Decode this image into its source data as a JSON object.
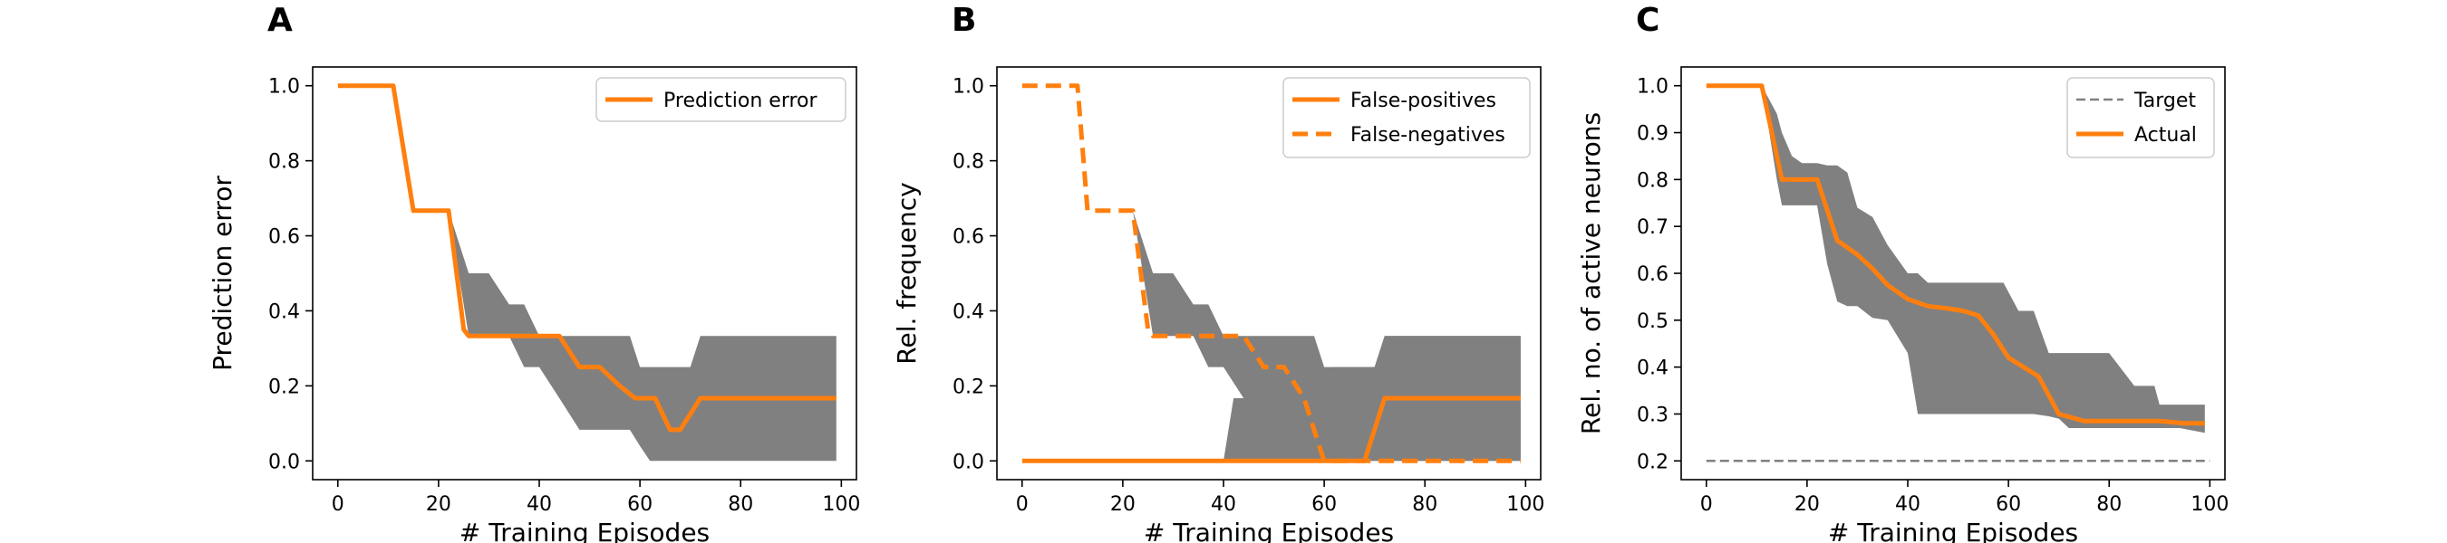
{
  "colors": {
    "primary": "#ff7f0e",
    "band": "#808080",
    "target": "#808080"
  },
  "chart_data": [
    {
      "type": "line",
      "panel_label": "A",
      "xlabel": "# Training Episodes",
      "ylabel": "Prediction error",
      "xlim": [
        -5,
        103
      ],
      "ylim": [
        -0.05,
        1.05
      ],
      "xticks": [
        0,
        20,
        40,
        60,
        80,
        100
      ],
      "yticks": [
        0.0,
        0.2,
        0.4,
        0.6,
        0.8,
        1.0
      ],
      "y_decimals": 1,
      "grid": false,
      "legend_position": "top-right",
      "series": [
        {
          "name": "Prediction error",
          "style": "solid",
          "x": [
            0,
            11,
            15,
            22,
            25,
            26,
            30,
            35,
            40,
            44,
            48,
            52,
            56,
            59,
            63,
            66,
            68,
            72,
            80,
            90,
            99
          ],
          "y": [
            1.0,
            1.0,
            0.667,
            0.667,
            0.35,
            0.333,
            0.333,
            0.333,
            0.333,
            0.333,
            0.25,
            0.25,
            0.2,
            0.167,
            0.167,
            0.083,
            0.083,
            0.167,
            0.167,
            0.167,
            0.167
          ]
        }
      ],
      "bands": [
        {
          "x": [
            22,
            26,
            30,
            34,
            37,
            40,
            44,
            48,
            55,
            58,
            60,
            62,
            64,
            70,
            72,
            99
          ],
          "lower": [
            0.667,
            0.333,
            0.333,
            0.333,
            0.25,
            0.25,
            0.167,
            0.083,
            0.083,
            0.083,
            0.04,
            0.0,
            0.0,
            0.0,
            0.0,
            0.0
          ],
          "upper": [
            0.667,
            0.5,
            0.5,
            0.417,
            0.417,
            0.333,
            0.333,
            0.333,
            0.333,
            0.333,
            0.25,
            0.25,
            0.25,
            0.25,
            0.333,
            0.333
          ]
        }
      ]
    },
    {
      "type": "line",
      "panel_label": "B",
      "xlabel": "# Training Episodes",
      "ylabel": "Rel. frequency",
      "xlim": [
        -5,
        103
      ],
      "ylim": [
        -0.05,
        1.05
      ],
      "xticks": [
        0,
        20,
        40,
        60,
        80,
        100
      ],
      "yticks": [
        0.0,
        0.2,
        0.4,
        0.6,
        0.8,
        1.0
      ],
      "y_decimals": 1,
      "grid": false,
      "legend_position": "top-right",
      "series": [
        {
          "name": "False-positives",
          "style": "solid",
          "x": [
            0,
            20,
            40,
            60,
            68,
            72,
            80,
            90,
            99
          ],
          "y": [
            0.0,
            0.0,
            0.0,
            0.0,
            0.0,
            0.167,
            0.167,
            0.167,
            0.167
          ]
        },
        {
          "name": "False-negatives",
          "style": "dashed",
          "x": [
            0,
            11,
            13,
            22,
            25,
            26,
            30,
            35,
            40,
            44,
            48,
            52,
            56,
            59,
            60,
            70,
            80,
            90,
            99
          ],
          "y": [
            1.0,
            1.0,
            0.667,
            0.667,
            0.35,
            0.333,
            0.333,
            0.333,
            0.333,
            0.333,
            0.25,
            0.25,
            0.167,
            0.04,
            0.0,
            0.0,
            0.0,
            0.0,
            0.0
          ]
        }
      ],
      "bands": [
        {
          "x": [
            22,
            26,
            30,
            34,
            37,
            40,
            44,
            48,
            55,
            58,
            60,
            62,
            64,
            70,
            72,
            99
          ],
          "lower": [
            0.667,
            0.333,
            0.333,
            0.333,
            0.25,
            0.25,
            0.167,
            0.083,
            0.083,
            0.083,
            0.04,
            0.0,
            0.0,
            0.0,
            0.0,
            0.0
          ],
          "upper": [
            0.667,
            0.5,
            0.5,
            0.417,
            0.417,
            0.333,
            0.333,
            0.333,
            0.333,
            0.333,
            0.25,
            0.25,
            0.25,
            0.25,
            0.333,
            0.333
          ]
        },
        {
          "x": [
            40,
            42,
            44,
            46,
            48,
            50,
            52,
            54,
            56,
            58,
            60,
            62,
            64,
            66,
            68,
            70,
            72,
            99
          ],
          "lower": [
            0.0,
            0.0,
            0.0,
            0.0,
            0.0,
            0.0,
            0.0,
            0.0,
            0.0,
            0.0,
            0.0,
            0.0,
            0.0,
            0.0,
            0.0,
            0.0,
            0.0,
            0.0
          ],
          "upper": [
            0.0,
            0.167,
            0.167,
            0.167,
            0.167,
            0.167,
            0.167,
            0.167,
            0.167,
            0.167,
            0.167,
            0.25,
            0.25,
            0.25,
            0.25,
            0.25,
            0.333,
            0.333
          ]
        }
      ]
    },
    {
      "type": "line",
      "panel_label": "C",
      "xlabel": "# Training Episodes",
      "ylabel": "Rel. no. of active neurons",
      "xlim": [
        -5,
        103
      ],
      "ylim": [
        0.16,
        1.04
      ],
      "xticks": [
        0,
        20,
        40,
        60,
        80,
        100
      ],
      "yticks": [
        0.2,
        0.3,
        0.4,
        0.5,
        0.6,
        0.7,
        0.8,
        0.9,
        1.0
      ],
      "y_decimals": 1,
      "grid": false,
      "legend_position": "top-right",
      "series": [
        {
          "name": "Target",
          "style": "dashed-thin",
          "x": [
            0,
            100
          ],
          "y": [
            0.2,
            0.2
          ]
        },
        {
          "name": "Actual",
          "style": "solid",
          "x": [
            0,
            11,
            13,
            15,
            22,
            26,
            30,
            33,
            36,
            40,
            44,
            48,
            51,
            54,
            57,
            60,
            63,
            66,
            70,
            75,
            80,
            85,
            90,
            95,
            99
          ],
          "y": [
            1.0,
            1.0,
            0.9,
            0.8,
            0.8,
            0.67,
            0.64,
            0.61,
            0.575,
            0.545,
            0.53,
            0.525,
            0.52,
            0.51,
            0.47,
            0.42,
            0.4,
            0.38,
            0.3,
            0.285,
            0.285,
            0.285,
            0.285,
            0.28,
            0.28
          ]
        }
      ],
      "bands": [
        {
          "x": [
            11,
            14,
            15,
            17,
            19,
            22,
            24,
            26,
            28,
            30,
            33,
            36,
            40,
            42,
            44,
            48,
            52,
            56,
            59,
            62,
            65,
            68,
            70,
            72,
            76,
            80,
            85,
            89,
            90,
            94,
            99
          ],
          "lower": [
            1.0,
            0.8,
            0.745,
            0.745,
            0.745,
            0.745,
            0.62,
            0.54,
            0.53,
            0.53,
            0.505,
            0.5,
            0.43,
            0.3,
            0.3,
            0.3,
            0.3,
            0.3,
            0.3,
            0.3,
            0.3,
            0.295,
            0.29,
            0.27,
            0.27,
            0.27,
            0.27,
            0.27,
            0.27,
            0.27,
            0.26
          ],
          "upper": [
            1.0,
            0.94,
            0.9,
            0.85,
            0.835,
            0.835,
            0.83,
            0.83,
            0.815,
            0.74,
            0.72,
            0.66,
            0.6,
            0.6,
            0.58,
            0.58,
            0.58,
            0.58,
            0.58,
            0.52,
            0.52,
            0.43,
            0.43,
            0.43,
            0.43,
            0.43,
            0.36,
            0.36,
            0.32,
            0.32,
            0.32
          ]
        }
      ]
    }
  ]
}
